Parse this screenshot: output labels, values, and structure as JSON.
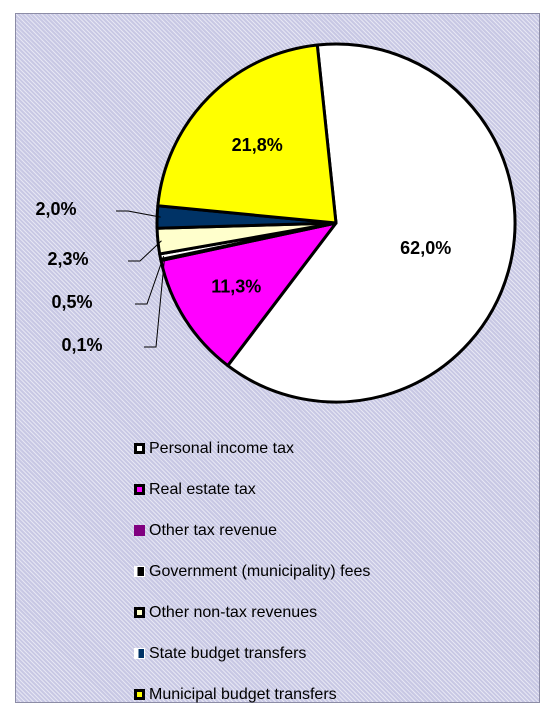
{
  "chart_data": {
    "type": "pie",
    "title": "",
    "start_angle_deg": -6,
    "labels_format": "comma-decimal-percent",
    "series": [
      {
        "name": "Personal income tax",
        "value": 62.0,
        "label": "62,0%",
        "color": "#ffffff",
        "stroke": "#000000",
        "swatch_style": "outlined"
      },
      {
        "name": "Real estate tax",
        "value": 11.3,
        "label": "11,3%",
        "color": "#ff00ff",
        "stroke": "#000000",
        "swatch_style": "outlined"
      },
      {
        "name": "Other tax revenue",
        "value": 0.1,
        "label": "0,1%",
        "color": "#800080",
        "stroke": "#800080",
        "swatch_style": "filled"
      },
      {
        "name": "Government (municipality) fees",
        "value": 0.5,
        "label": "0,5%",
        "color": "#ffffff",
        "stroke": "#000000",
        "swatch_style": "half"
      },
      {
        "name": "Other non-tax revenues",
        "value": 2.3,
        "label": "2,3%",
        "color": "#ffffcc",
        "stroke": "#000000",
        "swatch_style": "outlined"
      },
      {
        "name": "State budget transfers",
        "value": 2.0,
        "label": "2,0%",
        "color": "#003366",
        "stroke": "#003366",
        "swatch_style": "half-blue"
      },
      {
        "name": "Municipal budget transfers",
        "value": 21.8,
        "label": "21,8%",
        "color": "#ffff00",
        "stroke": "#000000",
        "swatch_style": "outlined"
      }
    ],
    "legend_position": "bottom"
  }
}
